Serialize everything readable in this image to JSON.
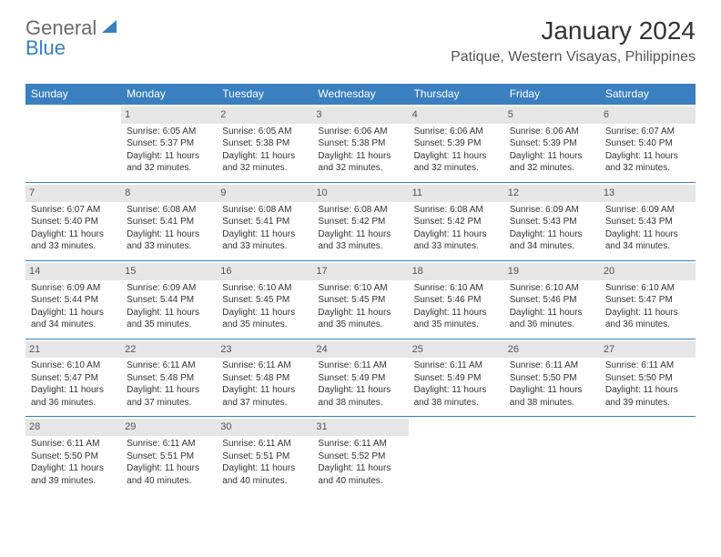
{
  "logo": {
    "part1": "General",
    "part2": "Blue"
  },
  "title": "January 2024",
  "location": "Patique, Western Visayas, Philippines",
  "colors": {
    "header_bg": "#3a7fbf",
    "header_text": "#ffffff",
    "daynum_bg": "#e6e6e6",
    "row_divider": "#3a7fbf",
    "logo_gray": "#6b6b6b",
    "logo_blue": "#3a7fbf",
    "text": "#333333",
    "background": "#ffffff"
  },
  "weekdays": [
    "Sunday",
    "Monday",
    "Tuesday",
    "Wednesday",
    "Thursday",
    "Friday",
    "Saturday"
  ],
  "weeks": [
    [
      {
        "day": "",
        "sunrise": "",
        "sunset": "",
        "daylight": ""
      },
      {
        "day": "1",
        "sunrise": "Sunrise: 6:05 AM",
        "sunset": "Sunset: 5:37 PM",
        "daylight": "Daylight: 11 hours and 32 minutes."
      },
      {
        "day": "2",
        "sunrise": "Sunrise: 6:05 AM",
        "sunset": "Sunset: 5:38 PM",
        "daylight": "Daylight: 11 hours and 32 minutes."
      },
      {
        "day": "3",
        "sunrise": "Sunrise: 6:06 AM",
        "sunset": "Sunset: 5:38 PM",
        "daylight": "Daylight: 11 hours and 32 minutes."
      },
      {
        "day": "4",
        "sunrise": "Sunrise: 6:06 AM",
        "sunset": "Sunset: 5:39 PM",
        "daylight": "Daylight: 11 hours and 32 minutes."
      },
      {
        "day": "5",
        "sunrise": "Sunrise: 6:06 AM",
        "sunset": "Sunset: 5:39 PM",
        "daylight": "Daylight: 11 hours and 32 minutes."
      },
      {
        "day": "6",
        "sunrise": "Sunrise: 6:07 AM",
        "sunset": "Sunset: 5:40 PM",
        "daylight": "Daylight: 11 hours and 32 minutes."
      }
    ],
    [
      {
        "day": "7",
        "sunrise": "Sunrise: 6:07 AM",
        "sunset": "Sunset: 5:40 PM",
        "daylight": "Daylight: 11 hours and 33 minutes."
      },
      {
        "day": "8",
        "sunrise": "Sunrise: 6:08 AM",
        "sunset": "Sunset: 5:41 PM",
        "daylight": "Daylight: 11 hours and 33 minutes."
      },
      {
        "day": "9",
        "sunrise": "Sunrise: 6:08 AM",
        "sunset": "Sunset: 5:41 PM",
        "daylight": "Daylight: 11 hours and 33 minutes."
      },
      {
        "day": "10",
        "sunrise": "Sunrise: 6:08 AM",
        "sunset": "Sunset: 5:42 PM",
        "daylight": "Daylight: 11 hours and 33 minutes."
      },
      {
        "day": "11",
        "sunrise": "Sunrise: 6:08 AM",
        "sunset": "Sunset: 5:42 PM",
        "daylight": "Daylight: 11 hours and 33 minutes."
      },
      {
        "day": "12",
        "sunrise": "Sunrise: 6:09 AM",
        "sunset": "Sunset: 5:43 PM",
        "daylight": "Daylight: 11 hours and 34 minutes."
      },
      {
        "day": "13",
        "sunrise": "Sunrise: 6:09 AM",
        "sunset": "Sunset: 5:43 PM",
        "daylight": "Daylight: 11 hours and 34 minutes."
      }
    ],
    [
      {
        "day": "14",
        "sunrise": "Sunrise: 6:09 AM",
        "sunset": "Sunset: 5:44 PM",
        "daylight": "Daylight: 11 hours and 34 minutes."
      },
      {
        "day": "15",
        "sunrise": "Sunrise: 6:09 AM",
        "sunset": "Sunset: 5:44 PM",
        "daylight": "Daylight: 11 hours and 35 minutes."
      },
      {
        "day": "16",
        "sunrise": "Sunrise: 6:10 AM",
        "sunset": "Sunset: 5:45 PM",
        "daylight": "Daylight: 11 hours and 35 minutes."
      },
      {
        "day": "17",
        "sunrise": "Sunrise: 6:10 AM",
        "sunset": "Sunset: 5:45 PM",
        "daylight": "Daylight: 11 hours and 35 minutes."
      },
      {
        "day": "18",
        "sunrise": "Sunrise: 6:10 AM",
        "sunset": "Sunset: 5:46 PM",
        "daylight": "Daylight: 11 hours and 35 minutes."
      },
      {
        "day": "19",
        "sunrise": "Sunrise: 6:10 AM",
        "sunset": "Sunset: 5:46 PM",
        "daylight": "Daylight: 11 hours and 36 minutes."
      },
      {
        "day": "20",
        "sunrise": "Sunrise: 6:10 AM",
        "sunset": "Sunset: 5:47 PM",
        "daylight": "Daylight: 11 hours and 36 minutes."
      }
    ],
    [
      {
        "day": "21",
        "sunrise": "Sunrise: 6:10 AM",
        "sunset": "Sunset: 5:47 PM",
        "daylight": "Daylight: 11 hours and 36 minutes."
      },
      {
        "day": "22",
        "sunrise": "Sunrise: 6:11 AM",
        "sunset": "Sunset: 5:48 PM",
        "daylight": "Daylight: 11 hours and 37 minutes."
      },
      {
        "day": "23",
        "sunrise": "Sunrise: 6:11 AM",
        "sunset": "Sunset: 5:48 PM",
        "daylight": "Daylight: 11 hours and 37 minutes."
      },
      {
        "day": "24",
        "sunrise": "Sunrise: 6:11 AM",
        "sunset": "Sunset: 5:49 PM",
        "daylight": "Daylight: 11 hours and 38 minutes."
      },
      {
        "day": "25",
        "sunrise": "Sunrise: 6:11 AM",
        "sunset": "Sunset: 5:49 PM",
        "daylight": "Daylight: 11 hours and 38 minutes."
      },
      {
        "day": "26",
        "sunrise": "Sunrise: 6:11 AM",
        "sunset": "Sunset: 5:50 PM",
        "daylight": "Daylight: 11 hours and 38 minutes."
      },
      {
        "day": "27",
        "sunrise": "Sunrise: 6:11 AM",
        "sunset": "Sunset: 5:50 PM",
        "daylight": "Daylight: 11 hours and 39 minutes."
      }
    ],
    [
      {
        "day": "28",
        "sunrise": "Sunrise: 6:11 AM",
        "sunset": "Sunset: 5:50 PM",
        "daylight": "Daylight: 11 hours and 39 minutes."
      },
      {
        "day": "29",
        "sunrise": "Sunrise: 6:11 AM",
        "sunset": "Sunset: 5:51 PM",
        "daylight": "Daylight: 11 hours and 40 minutes."
      },
      {
        "day": "30",
        "sunrise": "Sunrise: 6:11 AM",
        "sunset": "Sunset: 5:51 PM",
        "daylight": "Daylight: 11 hours and 40 minutes."
      },
      {
        "day": "31",
        "sunrise": "Sunrise: 6:11 AM",
        "sunset": "Sunset: 5:52 PM",
        "daylight": "Daylight: 11 hours and 40 minutes."
      },
      {
        "day": "",
        "sunrise": "",
        "sunset": "",
        "daylight": ""
      },
      {
        "day": "",
        "sunrise": "",
        "sunset": "",
        "daylight": ""
      },
      {
        "day": "",
        "sunrise": "",
        "sunset": "",
        "daylight": ""
      }
    ]
  ]
}
